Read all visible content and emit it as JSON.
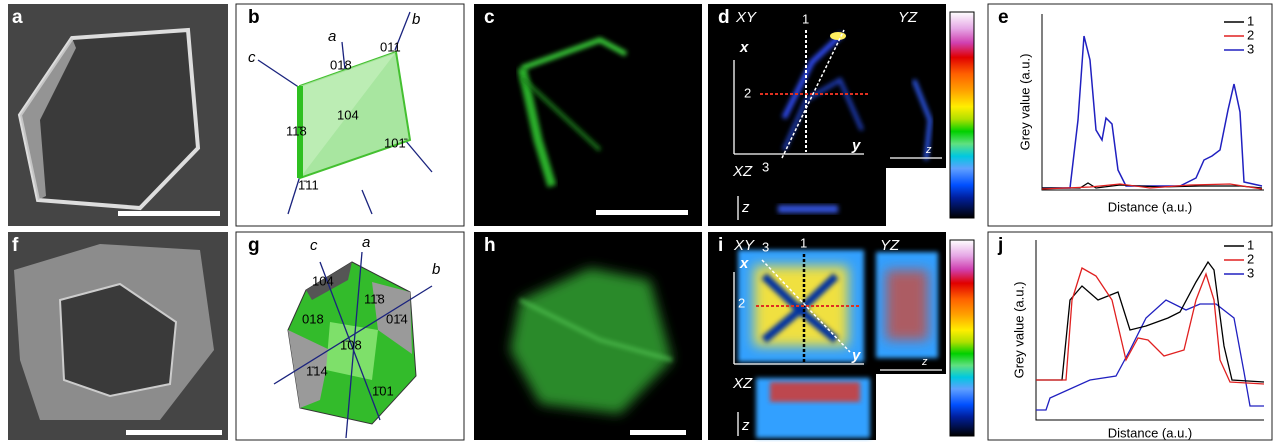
{
  "panels": [
    {
      "label": "a"
    },
    {
      "label": "b",
      "annotations": [
        "a",
        "b",
        "c",
        "018",
        "011",
        "104",
        "11̄8",
        "101̄",
        "1̄11"
      ]
    },
    {
      "label": "c"
    },
    {
      "label": "d",
      "annotations": [
        "XY",
        "YZ",
        "XZ",
        "x",
        "y",
        "z",
        "z",
        "1",
        "2",
        "3"
      ]
    },
    {
      "label": "e",
      "legend": [
        "1",
        "2",
        "3"
      ],
      "ylabel": "Grey value (a.u.)",
      "xlabel": "Distance (a.u.)"
    },
    {
      "label": "f"
    },
    {
      "label": "g",
      "annotations": [
        "c",
        "a",
        "b",
        "104",
        "11̄8",
        "018",
        "01̄4",
        "1̄08",
        "1̄14",
        "1̄01"
      ]
    },
    {
      "label": "h"
    },
    {
      "label": "i",
      "annotations": [
        "XY",
        "YZ",
        "XZ",
        "x",
        "y",
        "z",
        "z",
        "1",
        "2",
        "3"
      ]
    },
    {
      "label": "j",
      "legend": [
        "1",
        "2",
        "3"
      ],
      "ylabel": "Grey value (a.u.)",
      "xlabel": "Distance (a.u.)"
    }
  ]
}
